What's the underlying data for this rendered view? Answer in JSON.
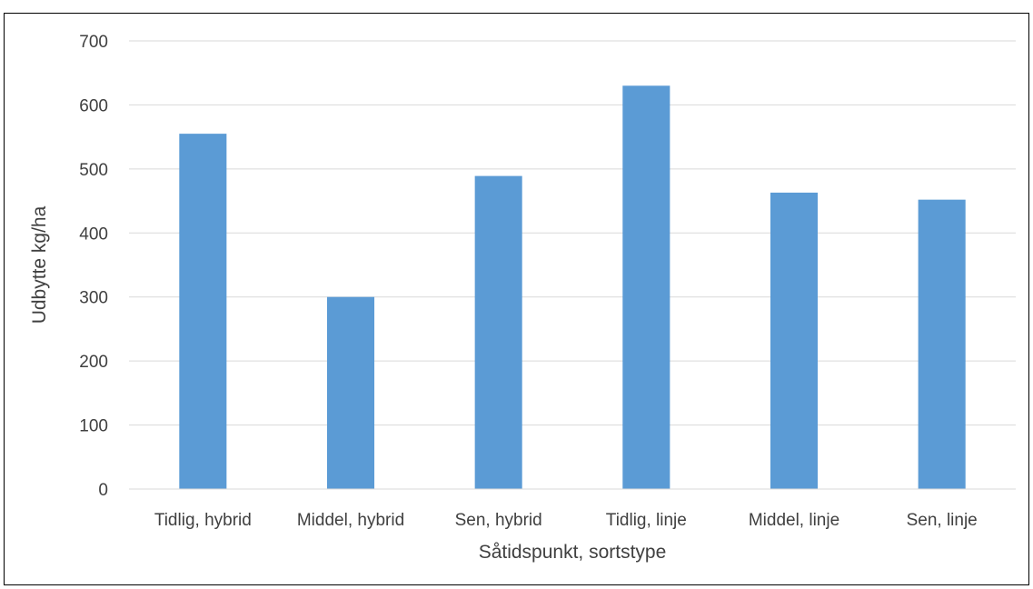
{
  "chart_data": {
    "type": "bar",
    "title": "",
    "xlabel": "Såtidspunkt, sortstype",
    "ylabel": "Udbytte kg/ha",
    "categories": [
      "Tidlig, hybrid",
      "Middel, hybrid",
      "Sen, hybrid",
      "Tidlig, linje",
      "Middel, linje",
      "Sen, linje"
    ],
    "values": [
      555,
      300,
      489,
      630,
      463,
      452
    ],
    "ylim": [
      0,
      700
    ],
    "yticks": [
      "0",
      "100",
      "200",
      "300",
      "400",
      "500",
      "600",
      "700"
    ],
    "grid": true,
    "legend": "none",
    "colors": {
      "bar": "#5B9BD5",
      "grid": "#D9D9D9",
      "text": "#404040",
      "border": "#000000"
    }
  }
}
